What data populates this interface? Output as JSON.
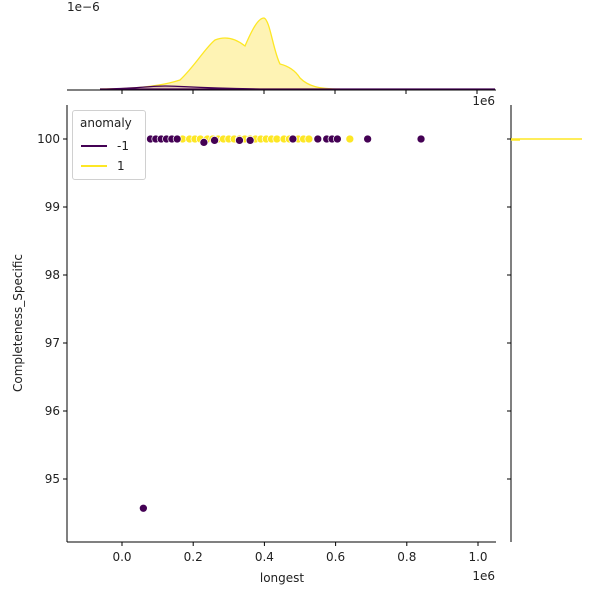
{
  "chart_data": {
    "type": "scatter",
    "subtype": "jointplot",
    "xlabel": "longest",
    "ylabel": "Completeness_Specific",
    "x_offset_label": "1e6",
    "top_marginal_offset_label": "1e−6",
    "top_marginal_x_offset_label": "1e6",
    "xlim": [
      -0.16,
      1.06
    ],
    "ylim": [
      94.1,
      100.5
    ],
    "x_ticks": [
      "0.0",
      "0.2",
      "0.4",
      "0.6",
      "0.8",
      "1.0"
    ],
    "y_ticks": [
      "95",
      "96",
      "97",
      "98",
      "99",
      "100"
    ],
    "legend": {
      "title": "anomaly",
      "position": "upper left",
      "entries": [
        {
          "label": "-1",
          "color": "#440154"
        },
        {
          "label": "1",
          "color": "#fde725"
        }
      ]
    },
    "series": [
      {
        "name": "-1",
        "color": "#440154",
        "points": [
          [
            0.08,
            100
          ],
          [
            0.095,
            100
          ],
          [
            0.11,
            100
          ],
          [
            0.125,
            100
          ],
          [
            0.14,
            100
          ],
          [
            0.155,
            100
          ],
          [
            0.23,
            99.95
          ],
          [
            0.26,
            99.98
          ],
          [
            0.33,
            99.98
          ],
          [
            0.36,
            99.98
          ],
          [
            0.48,
            100
          ],
          [
            0.55,
            100
          ],
          [
            0.575,
            100
          ],
          [
            0.59,
            100
          ],
          [
            0.605,
            100
          ],
          [
            0.69,
            100
          ],
          [
            0.84,
            100
          ],
          [
            0.06,
            94.57
          ]
        ]
      },
      {
        "name": "1",
        "color": "#fde725",
        "points": [
          [
            0.17,
            100
          ],
          [
            0.19,
            100
          ],
          [
            0.205,
            100
          ],
          [
            0.22,
            100
          ],
          [
            0.24,
            100
          ],
          [
            0.255,
            100
          ],
          [
            0.27,
            100
          ],
          [
            0.285,
            100
          ],
          [
            0.3,
            100
          ],
          [
            0.315,
            100
          ],
          [
            0.33,
            100
          ],
          [
            0.345,
            100
          ],
          [
            0.36,
            100
          ],
          [
            0.375,
            100
          ],
          [
            0.39,
            100
          ],
          [
            0.405,
            100
          ],
          [
            0.42,
            100
          ],
          [
            0.435,
            100
          ],
          [
            0.455,
            100
          ],
          [
            0.47,
            100
          ],
          [
            0.495,
            100
          ],
          [
            0.51,
            100
          ],
          [
            0.525,
            100
          ],
          [
            0.64,
            100
          ]
        ]
      }
    ],
    "top_marginal": {
      "type": "kde",
      "series": [
        {
          "name": "1",
          "peak_x": 0.4,
          "peak_density_e6": 1.9,
          "shoulder_x": 0.3
        },
        {
          "name": "-1",
          "peak_x": 0.13,
          "peak_density_e6": 0.08
        }
      ]
    },
    "right_marginal": {
      "type": "kde",
      "note": "density concentrated at y=100"
    }
  }
}
